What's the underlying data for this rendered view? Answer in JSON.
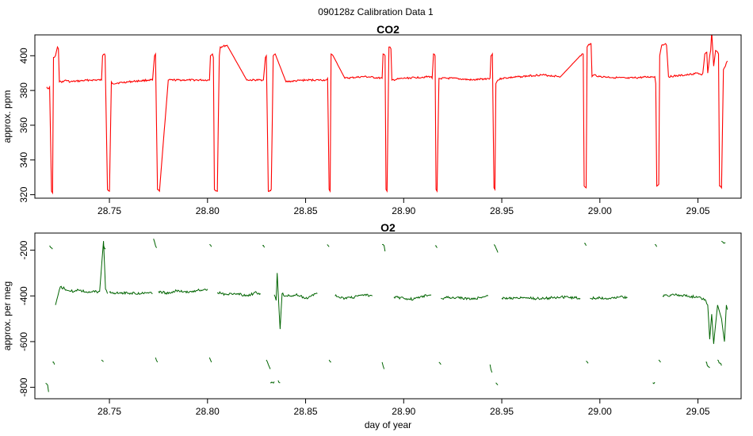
{
  "figure": {
    "title": "090128z   Calibration Data 1"
  },
  "chart_data": [
    {
      "type": "line",
      "title": "CO2",
      "xlabel": "",
      "ylabel": "approx. ppm",
      "xlim": [
        28.712,
        29.072
      ],
      "ylim": [
        318,
        412
      ],
      "x_ticks": [
        28.75,
        28.8,
        28.85,
        28.9,
        28.95,
        29.0,
        29.05
      ],
      "x_tick_labels": [
        "28.75",
        "28.80",
        "28.85",
        "28.90",
        "28.95",
        "29.00",
        "29.05"
      ],
      "y_ticks": [
        320,
        340,
        360,
        380,
        400
      ],
      "y_tick_labels": [
        "320",
        "340",
        "360",
        "380",
        "400"
      ],
      "color": "#ff0000",
      "series": [
        {
          "x": [
            28.718,
            28.719,
            28.7195,
            28.7205,
            28.721,
            28.7215,
            28.7225,
            28.7235,
            28.724,
            28.7245,
            28.7265,
            28.7275,
            28.73,
            28.74,
            28.746,
            28.7465,
            28.7475,
            28.7478,
            28.749,
            28.75,
            28.751,
            28.7515,
            28.76,
            28.77,
            28.772,
            28.773,
            28.7735,
            28.7745,
            28.7755,
            28.78,
            28.79,
            28.801,
            28.8015,
            28.8025,
            28.803,
            28.8035,
            28.805,
            28.806,
            28.8065,
            28.81,
            28.82,
            28.828,
            28.8285,
            28.8295,
            28.83,
            28.831,
            28.8325,
            28.8335,
            28.8345,
            28.84,
            28.85,
            28.86,
            28.8605,
            28.8612,
            28.862,
            28.8625,
            28.863,
            28.864,
            28.87,
            28.88,
            28.889,
            28.8895,
            28.8905,
            28.891,
            28.8915,
            28.8925,
            28.8935,
            28.894,
            28.9,
            28.914,
            28.9145,
            28.9152,
            28.916,
            28.9165,
            28.917,
            28.918,
            28.925,
            28.935,
            28.944,
            28.9445,
            28.9452,
            28.946,
            28.9465,
            28.947,
            28.948,
            28.95,
            28.96,
            28.97,
            28.98,
            28.99,
            28.9915,
            28.992,
            28.993,
            28.9935,
            28.994,
            28.9955,
            28.996,
            28.997,
            29.0,
            29.014,
            29.028,
            29.0285,
            29.029,
            29.03,
            29.0305,
            29.0315,
            29.0335,
            29.034,
            29.035,
            29.045,
            29.05,
            29.052,
            29.0525,
            29.0535,
            29.0545,
            29.055,
            29.056,
            29.0565,
            29.057,
            29.058,
            29.059,
            29.0605,
            29.061,
            29.062,
            29.063,
            29.064,
            29.0645,
            29.065
          ],
          "y": [
            382,
            381,
            382,
            322,
            321,
            399,
            400,
            405,
            404,
            385,
            385,
            386,
            385,
            386,
            386,
            400,
            401,
            400,
            323,
            322,
            385,
            384,
            385,
            386,
            386,
            400,
            401,
            323,
            322,
            386,
            386,
            386,
            400,
            401,
            399,
            323,
            322,
            400,
            405,
            406,
            386,
            386,
            386,
            399,
            400,
            322,
            323,
            400,
            401,
            385,
            386,
            386,
            386,
            387,
            323,
            322,
            401,
            400,
            387,
            388,
            387,
            401,
            400,
            323,
            322,
            405,
            404,
            386,
            387,
            388,
            387,
            401,
            400,
            323,
            322,
            387,
            387,
            386,
            387,
            400,
            401,
            324,
            323,
            384,
            386,
            387,
            388,
            389,
            388,
            400,
            401,
            325,
            324,
            405,
            406,
            407,
            388,
            389,
            388,
            387,
            388,
            384,
            325,
            326,
            400,
            406,
            407,
            406,
            388,
            389,
            390,
            389,
            390,
            401,
            402,
            390,
            400,
            403,
            414,
            394,
            403,
            401,
            325,
            324,
            392,
            394,
            396,
            397
          ]
        }
      ]
    },
    {
      "type": "scatter",
      "title": "O2",
      "xlabel": "day of year",
      "ylabel": "approx. per meg",
      "xlim": [
        28.712,
        29.072
      ],
      "ylim": [
        -850,
        -125
      ],
      "x_ticks": [
        28.75,
        28.8,
        28.85,
        28.9,
        28.95,
        29.0,
        29.05
      ],
      "x_tick_labels": [
        "28.75",
        "28.80",
        "28.85",
        "28.90",
        "28.95",
        "29.00",
        "29.05"
      ],
      "y_ticks": [
        -800,
        -600,
        -400,
        -200
      ],
      "y_tick_labels": [
        "-800",
        "-600",
        "-400",
        "-200"
      ],
      "color": "#006400",
      "segments": [
        {
          "x": [
            28.7175,
            28.7185,
            28.719
          ],
          "y": [
            -782,
            -790,
            -820
          ]
        },
        {
          "x": [
            28.7195,
            28.7205,
            28.721
          ],
          "y": [
            -180,
            -190,
            -195
          ]
        },
        {
          "x": [
            28.721,
            28.722
          ],
          "y": [
            -690,
            -700
          ]
        },
        {
          "x": [
            28.7225,
            28.724,
            28.725,
            28.73,
            28.735,
            28.74,
            28.745,
            28.747,
            28.748,
            28.749
          ],
          "y": [
            -440,
            -390,
            -360,
            -380,
            -375,
            -385,
            -380,
            -160,
            -370,
            -390
          ]
        },
        {
          "x": [
            28.746,
            28.747
          ],
          "y": [
            -680,
            -688
          ]
        },
        {
          "x": [
            28.747,
            28.748
          ],
          "y": [
            -180,
            -195
          ]
        },
        {
          "x": [
            28.75,
            28.76,
            28.77,
            28.772
          ],
          "y": [
            -385,
            -388,
            -388,
            -390
          ]
        },
        {
          "x": [
            28.7725,
            28.7735,
            28.774
          ],
          "y": [
            -150,
            -180,
            -190
          ]
        },
        {
          "x": [
            28.7735,
            28.7745
          ],
          "y": [
            -670,
            -690
          ]
        },
        {
          "x": [
            28.775,
            28.78,
            28.785,
            28.79,
            28.795,
            28.8
          ],
          "y": [
            -380,
            -390,
            -375,
            -385,
            -375,
            -370
          ]
        },
        {
          "x": [
            28.801,
            28.802
          ],
          "y": [
            -175,
            -185
          ]
        },
        {
          "x": [
            28.801,
            28.802
          ],
          "y": [
            -670,
            -690
          ]
        },
        {
          "x": [
            28.805,
            28.81,
            28.815,
            28.82,
            28.825,
            28.827
          ],
          "y": [
            -385,
            -395,
            -390,
            -400,
            -385,
            -390
          ]
        },
        {
          "x": [
            28.828,
            28.829
          ],
          "y": [
            -180,
            -188
          ]
        },
        {
          "x": [
            28.83,
            28.831,
            28.832
          ],
          "y": [
            -680,
            -700,
            -720
          ]
        },
        {
          "x": [
            28.832,
            28.834
          ],
          "y": [
            -780,
            -775
          ]
        },
        {
          "x": [
            28.836,
            28.837
          ],
          "y": [
            -770,
            -780
          ]
        },
        {
          "x": [
            28.834,
            28.835,
            28.8355,
            28.837,
            28.838,
            28.84,
            28.845,
            28.85,
            28.856
          ],
          "y": [
            -395,
            -420,
            -300,
            -545,
            -390,
            -400,
            -395,
            -410,
            -390
          ]
        },
        {
          "x": [
            28.861,
            28.862
          ],
          "y": [
            -175,
            -185
          ]
        },
        {
          "x": [
            28.862,
            28.863
          ],
          "y": [
            -680,
            -690
          ]
        },
        {
          "x": [
            28.865,
            28.87,
            28.875,
            28.88,
            28.884
          ],
          "y": [
            -400,
            -410,
            -405,
            -395,
            -400
          ]
        },
        {
          "x": [
            28.889,
            28.89,
            28.8905
          ],
          "y": [
            -175,
            -180,
            -205
          ]
        },
        {
          "x": [
            28.889,
            28.89
          ],
          "y": [
            -690,
            -720
          ]
        },
        {
          "x": [
            28.895,
            28.9,
            28.905,
            28.91,
            28.914
          ],
          "y": [
            -405,
            -410,
            -415,
            -400,
            -395
          ]
        },
        {
          "x": [
            28.916,
            28.917
          ],
          "y": [
            -180,
            -190
          ]
        },
        {
          "x": [
            28.918,
            28.919
          ],
          "y": [
            -690,
            -700
          ]
        },
        {
          "x": [
            28.919,
            28.925,
            28.93,
            28.935,
            28.94,
            28.943
          ],
          "y": [
            -410,
            -405,
            -410,
            -415,
            -405,
            -400
          ]
        },
        {
          "x": [
            28.944,
            28.945
          ],
          "y": [
            -700,
            -735
          ]
        },
        {
          "x": [
            28.946,
            28.947,
            28.948
          ],
          "y": [
            -175,
            -190,
            -210
          ]
        },
        {
          "x": [
            28.947,
            28.948
          ],
          "y": [
            -780,
            -790
          ]
        },
        {
          "x": [
            28.95,
            28.96,
            28.97,
            28.98,
            28.99
          ],
          "y": [
            -410,
            -408,
            -412,
            -405,
            -410
          ]
        },
        {
          "x": [
            28.992,
            28.993
          ],
          "y": [
            -170,
            -180
          ]
        },
        {
          "x": [
            28.993,
            28.994
          ],
          "y": [
            -685,
            -695
          ]
        },
        {
          "x": [
            28.995,
            29.0,
            29.005,
            29.01,
            29.014
          ],
          "y": [
            -410,
            -408,
            -410,
            -405,
            -408
          ]
        },
        {
          "x": [
            29.027,
            29.028
          ],
          "y": [
            -780,
            -778
          ]
        },
        {
          "x": [
            29.028,
            29.029
          ],
          "y": [
            -175,
            -185
          ]
        },
        {
          "x": [
            29.03,
            29.031
          ],
          "y": [
            -680,
            -690
          ]
        },
        {
          "x": [
            29.032,
            29.04,
            29.045,
            29.05,
            29.054,
            29.055,
            29.056,
            29.057,
            29.058,
            29.06,
            29.062,
            29.0635,
            29.0645,
            29.065
          ],
          "y": [
            -400,
            -395,
            -402,
            -405,
            -420,
            -440,
            -590,
            -480,
            -610,
            -440,
            -500,
            -600,
            -440,
            -460
          ]
        },
        {
          "x": [
            29.054,
            29.056
          ],
          "y": [
            -690,
            -715
          ]
        },
        {
          "x": [
            29.06,
            29.062
          ],
          "y": [
            -680,
            -705
          ]
        },
        {
          "x": [
            29.062,
            29.064
          ],
          "y": [
            -160,
            -168
          ]
        }
      ]
    }
  ]
}
